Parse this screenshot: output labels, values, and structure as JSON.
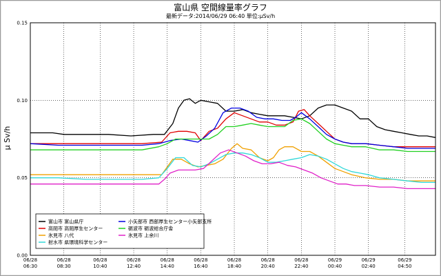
{
  "chart_data": {
    "type": "line",
    "title": "富山県 空間線量率グラフ",
    "subtitle": "最新データ:2014/06/29 06:40 単位:μSv/h",
    "ylabel": "μ Sv/h",
    "ylim": [
      0,
      0.15
    ],
    "yticks": [
      "0.00",
      "0.05",
      "0.10",
      "0.15"
    ],
    "xlim": [
      0,
      145
    ],
    "x_ticks": [
      {
        "date": "06/28",
        "time": "06:30",
        "x": 0
      },
      {
        "date": "06/28",
        "time": "08:30",
        "x": 12
      },
      {
        "date": "06/28",
        "time": "10:40",
        "x": 25
      },
      {
        "date": "06/28",
        "time": "12:40",
        "x": 37
      },
      {
        "date": "06/28",
        "time": "14:40",
        "x": 49
      },
      {
        "date": "06/28",
        "time": "16:40",
        "x": 61
      },
      {
        "date": "06/28",
        "time": "18:40",
        "x": 73
      },
      {
        "date": "06/28",
        "time": "20:40",
        "x": 85
      },
      {
        "date": "06/28",
        "time": "22:40",
        "x": 97
      },
      {
        "date": "06/29",
        "time": "00:40",
        "x": 109
      },
      {
        "date": "06/29",
        "time": "02:40",
        "x": 121
      },
      {
        "date": "06/29",
        "time": "04:50",
        "x": 134
      }
    ],
    "grid": true,
    "legend_position": "bottom-left",
    "series": [
      {
        "name": "富山市 富山県庁",
        "color": "#000000",
        "points": [
          [
            0,
            0.079
          ],
          [
            8,
            0.079
          ],
          [
            12,
            0.078
          ],
          [
            20,
            0.078
          ],
          [
            28,
            0.078
          ],
          [
            36,
            0.077
          ],
          [
            44,
            0.078
          ],
          [
            48,
            0.078
          ],
          [
            51,
            0.085
          ],
          [
            53,
            0.095
          ],
          [
            55,
            0.1
          ],
          [
            57,
            0.101
          ],
          [
            59,
            0.098
          ],
          [
            61,
            0.1
          ],
          [
            64,
            0.099
          ],
          [
            67,
            0.098
          ],
          [
            70,
            0.093
          ],
          [
            73,
            0.093
          ],
          [
            76,
            0.094
          ],
          [
            79,
            0.092
          ],
          [
            82,
            0.091
          ],
          [
            85,
            0.09
          ],
          [
            88,
            0.09
          ],
          [
            91,
            0.09
          ],
          [
            94,
            0.089
          ],
          [
            97,
            0.088
          ],
          [
            100,
            0.09
          ],
          [
            103,
            0.095
          ],
          [
            106,
            0.097
          ],
          [
            109,
            0.097
          ],
          [
            112,
            0.095
          ],
          [
            115,
            0.093
          ],
          [
            118,
            0.088
          ],
          [
            121,
            0.088
          ],
          [
            124,
            0.083
          ],
          [
            127,
            0.081
          ],
          [
            130,
            0.08
          ],
          [
            133,
            0.079
          ],
          [
            136,
            0.078
          ],
          [
            139,
            0.077
          ],
          [
            142,
            0.077
          ],
          [
            145,
            0.076
          ]
        ]
      },
      {
        "name": "高岡市 高岡厚生センター",
        "color": "#e00000",
        "points": [
          [
            0,
            0.072
          ],
          [
            10,
            0.072
          ],
          [
            20,
            0.072
          ],
          [
            30,
            0.072
          ],
          [
            40,
            0.072
          ],
          [
            47,
            0.073
          ],
          [
            50,
            0.079
          ],
          [
            53,
            0.08
          ],
          [
            56,
            0.08
          ],
          [
            59,
            0.079
          ],
          [
            61,
            0.074
          ],
          [
            64,
            0.08
          ],
          [
            67,
            0.082
          ],
          [
            70,
            0.088
          ],
          [
            73,
            0.092
          ],
          [
            76,
            0.09
          ],
          [
            79,
            0.088
          ],
          [
            82,
            0.086
          ],
          [
            85,
            0.086
          ],
          [
            88,
            0.084
          ],
          [
            91,
            0.084
          ],
          [
            94,
            0.086
          ],
          [
            96,
            0.093
          ],
          [
            98,
            0.094
          ],
          [
            100,
            0.09
          ],
          [
            103,
            0.085
          ],
          [
            106,
            0.08
          ],
          [
            109,
            0.075
          ],
          [
            112,
            0.073
          ],
          [
            115,
            0.072
          ],
          [
            120,
            0.072
          ],
          [
            125,
            0.071
          ],
          [
            130,
            0.07
          ],
          [
            135,
            0.07
          ],
          [
            140,
            0.07
          ],
          [
            145,
            0.07
          ]
        ]
      },
      {
        "name": "氷見市 八代",
        "color": "#f0a000",
        "points": [
          [
            0,
            0.052
          ],
          [
            10,
            0.052
          ],
          [
            20,
            0.052
          ],
          [
            30,
            0.052
          ],
          [
            44,
            0.052
          ],
          [
            47,
            0.052
          ],
          [
            49,
            0.057
          ],
          [
            51,
            0.062
          ],
          [
            54,
            0.062
          ],
          [
            57,
            0.059
          ],
          [
            60,
            0.057
          ],
          [
            63,
            0.058
          ],
          [
            66,
            0.059
          ],
          [
            69,
            0.062
          ],
          [
            72,
            0.069
          ],
          [
            74,
            0.072
          ],
          [
            76,
            0.069
          ],
          [
            79,
            0.068
          ],
          [
            82,
            0.063
          ],
          [
            85,
            0.061
          ],
          [
            87,
            0.063
          ],
          [
            89,
            0.068
          ],
          [
            91,
            0.07
          ],
          [
            94,
            0.07
          ],
          [
            97,
            0.067
          ],
          [
            100,
            0.067
          ],
          [
            103,
            0.064
          ],
          [
            106,
            0.06
          ],
          [
            109,
            0.056
          ],
          [
            112,
            0.054
          ],
          [
            115,
            0.052
          ],
          [
            120,
            0.05
          ],
          [
            125,
            0.049
          ],
          [
            130,
            0.049
          ],
          [
            135,
            0.048
          ],
          [
            140,
            0.048
          ],
          [
            145,
            0.048
          ]
        ]
      },
      {
        "name": "射水市 県環境科学センター",
        "color": "#30d8d8",
        "points": [
          [
            0,
            0.05
          ],
          [
            10,
            0.05
          ],
          [
            20,
            0.049
          ],
          [
            30,
            0.049
          ],
          [
            40,
            0.049
          ],
          [
            46,
            0.05
          ],
          [
            49,
            0.056
          ],
          [
            52,
            0.063
          ],
          [
            55,
            0.063
          ],
          [
            58,
            0.058
          ],
          [
            61,
            0.057
          ],
          [
            64,
            0.059
          ],
          [
            67,
            0.062
          ],
          [
            70,
            0.065
          ],
          [
            73,
            0.066
          ],
          [
            76,
            0.066
          ],
          [
            79,
            0.065
          ],
          [
            82,
            0.063
          ],
          [
            85,
            0.06
          ],
          [
            88,
            0.06
          ],
          [
            91,
            0.061
          ],
          [
            94,
            0.062
          ],
          [
            97,
            0.063
          ],
          [
            100,
            0.065
          ],
          [
            103,
            0.064
          ],
          [
            106,
            0.062
          ],
          [
            109,
            0.059
          ],
          [
            112,
            0.056
          ],
          [
            115,
            0.054
          ],
          [
            118,
            0.053
          ],
          [
            121,
            0.052
          ],
          [
            125,
            0.05
          ],
          [
            130,
            0.049
          ],
          [
            135,
            0.048
          ],
          [
            140,
            0.047
          ],
          [
            145,
            0.047
          ]
        ]
      },
      {
        "name": "小矢部市 西部厚生センター小矢部支所",
        "color": "#0000e0",
        "points": [
          [
            0,
            0.072
          ],
          [
            10,
            0.071
          ],
          [
            20,
            0.071
          ],
          [
            30,
            0.071
          ],
          [
            40,
            0.071
          ],
          [
            46,
            0.072
          ],
          [
            50,
            0.074
          ],
          [
            54,
            0.075
          ],
          [
            57,
            0.074
          ],
          [
            60,
            0.073
          ],
          [
            63,
            0.077
          ],
          [
            66,
            0.082
          ],
          [
            69,
            0.092
          ],
          [
            72,
            0.095
          ],
          [
            75,
            0.095
          ],
          [
            78,
            0.093
          ],
          [
            81,
            0.089
          ],
          [
            84,
            0.088
          ],
          [
            87,
            0.088
          ],
          [
            90,
            0.087
          ],
          [
            93,
            0.087
          ],
          [
            95,
            0.089
          ],
          [
            97,
            0.092
          ],
          [
            100,
            0.088
          ],
          [
            103,
            0.083
          ],
          [
            106,
            0.078
          ],
          [
            109,
            0.075
          ],
          [
            112,
            0.073
          ],
          [
            115,
            0.072
          ],
          [
            120,
            0.072
          ],
          [
            125,
            0.071
          ],
          [
            130,
            0.07
          ],
          [
            135,
            0.069
          ],
          [
            140,
            0.069
          ],
          [
            145,
            0.069
          ]
        ]
      },
      {
        "name": "砺波市 砺波総合庁舎",
        "color": "#20d020",
        "points": [
          [
            0,
            0.068
          ],
          [
            10,
            0.068
          ],
          [
            20,
            0.068
          ],
          [
            30,
            0.068
          ],
          [
            40,
            0.068
          ],
          [
            46,
            0.07
          ],
          [
            49,
            0.072
          ],
          [
            52,
            0.075
          ],
          [
            55,
            0.075
          ],
          [
            58,
            0.075
          ],
          [
            61,
            0.075
          ],
          [
            64,
            0.075
          ],
          [
            67,
            0.078
          ],
          [
            70,
            0.083
          ],
          [
            73,
            0.083
          ],
          [
            76,
            0.084
          ],
          [
            79,
            0.085
          ],
          [
            82,
            0.084
          ],
          [
            85,
            0.083
          ],
          [
            88,
            0.083
          ],
          [
            91,
            0.083
          ],
          [
            94,
            0.087
          ],
          [
            97,
            0.088
          ],
          [
            100,
            0.085
          ],
          [
            103,
            0.08
          ],
          [
            106,
            0.075
          ],
          [
            109,
            0.072
          ],
          [
            112,
            0.071
          ],
          [
            115,
            0.07
          ],
          [
            120,
            0.07
          ],
          [
            125,
            0.068
          ],
          [
            130,
            0.068
          ],
          [
            135,
            0.067
          ],
          [
            140,
            0.067
          ],
          [
            145,
            0.067
          ]
        ]
      },
      {
        "name": "氷見市 上余川",
        "color": "#e020c8",
        "points": [
          [
            0,
            0.046
          ],
          [
            10,
            0.046
          ],
          [
            20,
            0.046
          ],
          [
            30,
            0.046
          ],
          [
            40,
            0.046
          ],
          [
            46,
            0.046
          ],
          [
            48,
            0.049
          ],
          [
            50,
            0.053
          ],
          [
            53,
            0.055
          ],
          [
            56,
            0.055
          ],
          [
            59,
            0.055
          ],
          [
            62,
            0.056
          ],
          [
            65,
            0.061
          ],
          [
            68,
            0.066
          ],
          [
            71,
            0.068
          ],
          [
            74,
            0.066
          ],
          [
            77,
            0.064
          ],
          [
            80,
            0.061
          ],
          [
            83,
            0.059
          ],
          [
            86,
            0.059
          ],
          [
            89,
            0.06
          ],
          [
            92,
            0.058
          ],
          [
            95,
            0.057
          ],
          [
            98,
            0.055
          ],
          [
            101,
            0.053
          ],
          [
            104,
            0.05
          ],
          [
            107,
            0.048
          ],
          [
            110,
            0.046
          ],
          [
            113,
            0.046
          ],
          [
            116,
            0.045
          ],
          [
            120,
            0.045
          ],
          [
            125,
            0.044
          ],
          [
            130,
            0.044
          ],
          [
            135,
            0.043
          ],
          [
            140,
            0.043
          ],
          [
            145,
            0.043
          ]
        ]
      }
    ]
  }
}
